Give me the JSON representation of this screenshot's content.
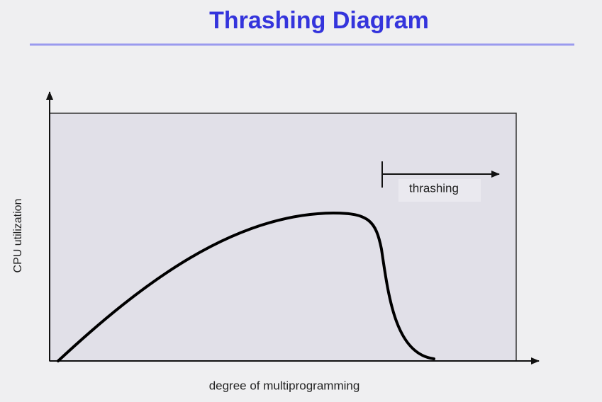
{
  "title": "Thrashing Diagram",
  "diagram": {
    "y_axis_label": "CPU utilization",
    "x_axis_label": "degree of multiprogramming",
    "annotation": "thrashing"
  }
}
